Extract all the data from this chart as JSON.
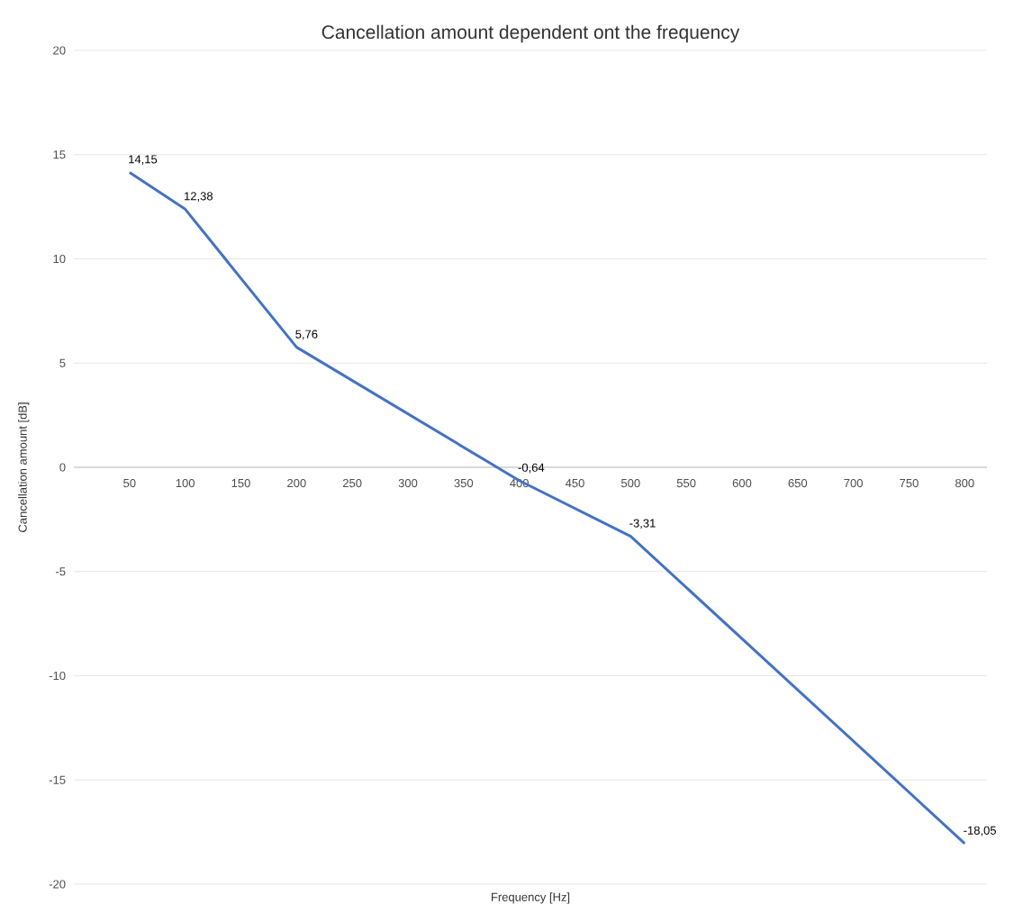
{
  "chart_data": {
    "type": "line",
    "title": "Cancellation amount dependent ont the frequency",
    "xlabel": "Frequency [Hz]",
    "ylabel": "Cancellation amount [dB]",
    "x": [
      50,
      100,
      200,
      400,
      500,
      800
    ],
    "values": [
      14.15,
      12.38,
      5.76,
      -0.64,
      -3.31,
      -18.05
    ],
    "value_labels": [
      "14,15",
      "12,38",
      "5,76",
      "-0,64",
      "-3,31",
      "-18,05"
    ],
    "color": "#4472c4",
    "xlim": [
      0,
      820
    ],
    "xticks": [
      50,
      100,
      150,
      200,
      250,
      300,
      350,
      400,
      450,
      500,
      550,
      600,
      650,
      700,
      750,
      800
    ],
    "ylim": [
      -20,
      20
    ],
    "yticks": [
      -20,
      -15,
      -10,
      -5,
      0,
      5,
      10,
      15,
      20
    ],
    "grid": "y"
  }
}
